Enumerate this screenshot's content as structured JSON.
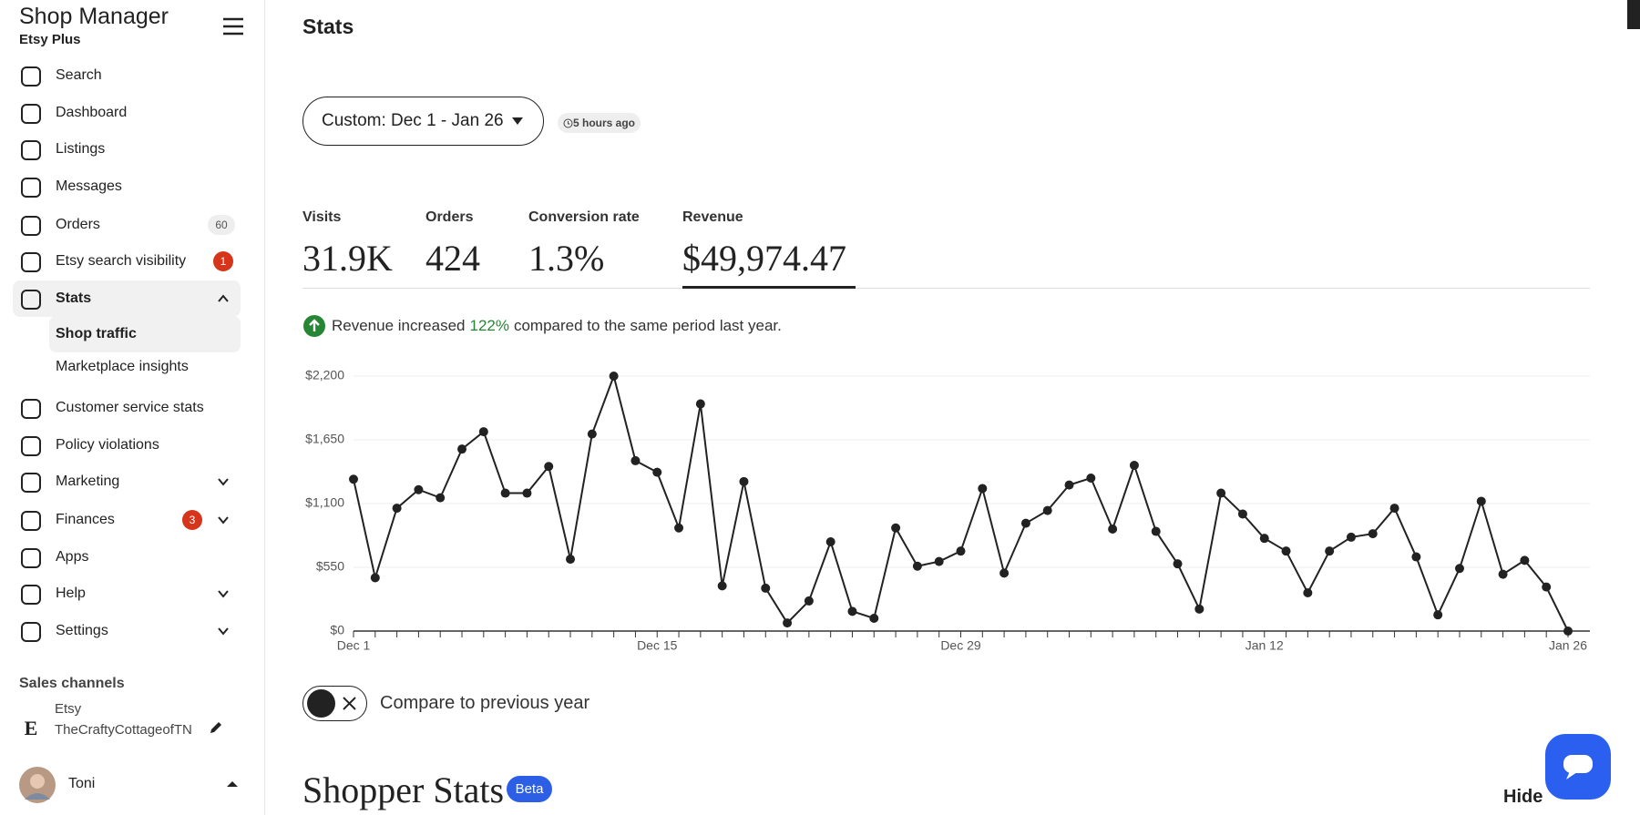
{
  "sidebar": {
    "title": "Shop Manager",
    "subtitle": "Etsy Plus",
    "nav": [
      {
        "label": "Search"
      },
      {
        "label": "Dashboard"
      },
      {
        "label": "Listings"
      },
      {
        "label": "Messages"
      },
      {
        "label": "Orders",
        "badge": 60
      },
      {
        "label": "Etsy search visibility",
        "badge": 1
      },
      {
        "label": "Stats"
      },
      {
        "label": "Shop traffic"
      },
      {
        "label": "Marketplace insights"
      },
      {
        "label": "Customer service stats"
      },
      {
        "label": "Policy violations"
      },
      {
        "label": "Marketing"
      },
      {
        "label": "Finances",
        "badge": 3
      },
      {
        "label": "Apps"
      },
      {
        "label": "Help"
      },
      {
        "label": "Settings"
      }
    ],
    "sales_channels": {
      "heading": "Sales channels",
      "channel": "Etsy",
      "shop": "TheCraftyCottageofTN"
    },
    "user": "Toni"
  },
  "header": {
    "title": "Stats",
    "date_range": "Custom: Dec 1 - Jan 26",
    "updated": "5 hours ago"
  },
  "metrics": [
    {
      "label": "Visits",
      "value": "31.9K"
    },
    {
      "label": "Orders",
      "value": "424"
    },
    {
      "label": "Conversion rate",
      "value": "1.3%"
    },
    {
      "label": "Revenue",
      "value": "$49,974.47"
    }
  ],
  "notice": {
    "before": "Revenue increased",
    "change": "122%",
    "after": "compared to the same period last year."
  },
  "compare": "Compare to previous year",
  "section": {
    "title": "Shopper Stats",
    "badge": "Beta",
    "hide": "Hide"
  },
  "chart_data": {
    "type": "line",
    "categories": [
      "Dec 1",
      null,
      null,
      null,
      null,
      null,
      null,
      null,
      null,
      null,
      null,
      null,
      null,
      null,
      "Dec 15",
      null,
      null,
      null,
      null,
      null,
      null,
      null,
      null,
      null,
      null,
      null,
      null,
      null,
      "Dec 29",
      null,
      null,
      null,
      null,
      null,
      null,
      null,
      null,
      null,
      null,
      null,
      null,
      null,
      "Jan 12",
      null,
      null,
      null,
      null,
      null,
      null,
      null,
      null,
      null,
      null,
      null,
      null,
      null,
      "Jan 26"
    ],
    "series": [
      {
        "name": "Revenue",
        "color": "#222222",
        "values": [
          1310,
          460,
          1060,
          1220,
          1150,
          1570,
          1720,
          1190,
          1190,
          1420,
          620,
          1700,
          2200,
          1470,
          1370,
          890,
          1960,
          390,
          1290,
          370,
          70,
          260,
          770,
          170,
          110,
          890,
          560,
          600,
          690,
          1230,
          500,
          930,
          1040,
          1260,
          1320,
          880,
          1430,
          860,
          580,
          190,
          1190,
          1010,
          800,
          690,
          330,
          690,
          810,
          840,
          1060,
          640,
          140,
          540,
          1120,
          490,
          610,
          380,
          0
        ]
      }
    ],
    "ylim": [
      0,
      2200
    ],
    "yticks": [
      {
        "value": 0,
        "label": "$0"
      },
      {
        "value": 550,
        "label": "$550"
      },
      {
        "value": 1100,
        "label": "$1,100"
      },
      {
        "value": 1650,
        "label": "$1,650"
      },
      {
        "value": 2200,
        "label": "$2,200"
      }
    ],
    "grid": true
  }
}
